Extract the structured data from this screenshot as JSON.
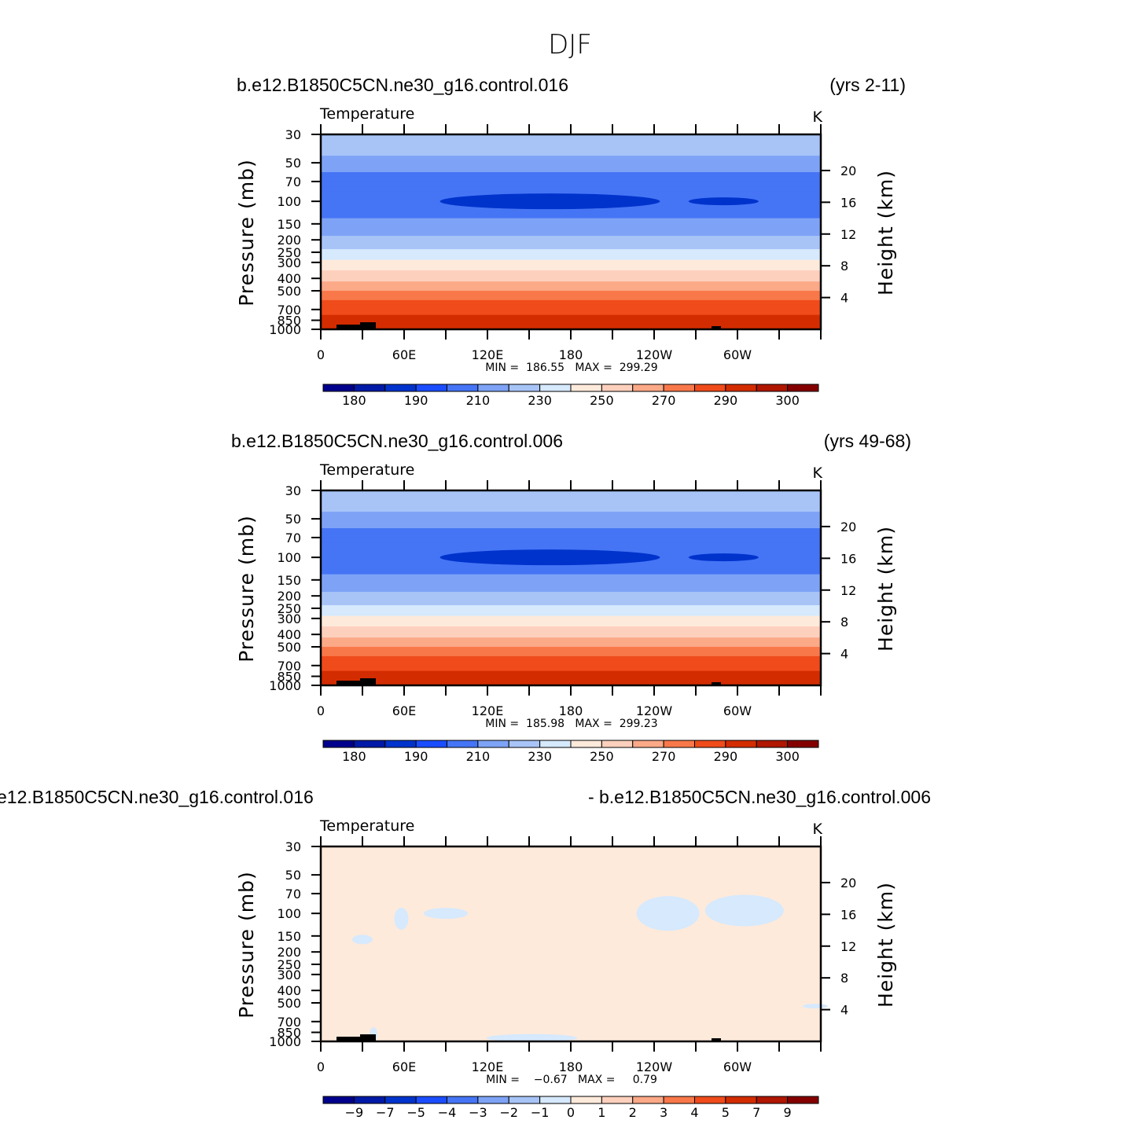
{
  "figure": {
    "title": "DJF"
  },
  "colorbar_palette": [
    "#00008c",
    "#0019a6",
    "#0033cc",
    "#1a4dff",
    "#4575f5",
    "#7ea3f6",
    "#a8c4f7",
    "#d6e9fd",
    "#feeadb",
    "#fdd0bd",
    "#fba987",
    "#f9784a",
    "#f04b1a",
    "#d32c00",
    "#b01600",
    "#840000"
  ],
  "chart_data": [
    {
      "type": "heatmap",
      "panel": "top",
      "case_name": "b.e12.B1850C5CN.ne30_g16.control.016",
      "years_label": "(yrs 2-11)",
      "variable_label": "Temperature",
      "units_label": "K",
      "ylabel": "Pressure (mb)",
      "right_ylabel": "Height (km)",
      "x_ticks": [
        "0",
        "60E",
        "120E",
        "180",
        "120W",
        "60W"
      ],
      "y_ticks": [
        "30",
        "50",
        "70",
        "100",
        "150",
        "200",
        "250",
        "300",
        "400",
        "500",
        "700",
        "850",
        "1000"
      ],
      "right_ticks": [
        "20",
        "16",
        "12",
        "8",
        "4"
      ],
      "stats_label": "MIN =  186.55   MAX =  299.29",
      "colorbar_labels": [
        "180",
        "190",
        "210",
        "230",
        "250",
        "270",
        "290",
        "300"
      ],
      "ylim": [
        1000,
        30
      ],
      "xlim": [
        0,
        360
      ],
      "levels_K": [
        {
          "p": 30,
          "t": 219
        },
        {
          "p": 50,
          "t": 206
        },
        {
          "p": 70,
          "t": 195
        },
        {
          "p": 100,
          "t": 193
        },
        {
          "p": 150,
          "t": 204
        },
        {
          "p": 200,
          "t": 212
        },
        {
          "p": 250,
          "t": 222
        },
        {
          "p": 300,
          "t": 232
        },
        {
          "p": 400,
          "t": 248
        },
        {
          "p": 500,
          "t": 260
        },
        {
          "p": 700,
          "t": 276
        },
        {
          "p": 850,
          "t": 285
        },
        {
          "p": 1000,
          "t": 293
        }
      ]
    },
    {
      "type": "heatmap",
      "panel": "middle",
      "case_name": "b.e12.B1850C5CN.ne30_g16.control.006",
      "years_label": "(yrs 49-68)",
      "variable_label": "Temperature",
      "units_label": "K",
      "ylabel": "Pressure (mb)",
      "right_ylabel": "Height (km)",
      "x_ticks": [
        "0",
        "60E",
        "120E",
        "180",
        "120W",
        "60W"
      ],
      "y_ticks": [
        "30",
        "50",
        "70",
        "100",
        "150",
        "200",
        "250",
        "300",
        "400",
        "500",
        "700",
        "850",
        "1000"
      ],
      "right_ticks": [
        "20",
        "16",
        "12",
        "8",
        "4"
      ],
      "stats_label": "MIN =  185.98   MAX =  299.23",
      "colorbar_labels": [
        "180",
        "190",
        "210",
        "230",
        "250",
        "270",
        "290",
        "300"
      ],
      "ylim": [
        1000,
        30
      ],
      "xlim": [
        0,
        360
      ],
      "levels_K": [
        {
          "p": 30,
          "t": 219
        },
        {
          "p": 50,
          "t": 206
        },
        {
          "p": 70,
          "t": 195
        },
        {
          "p": 100,
          "t": 193
        },
        {
          "p": 150,
          "t": 204
        },
        {
          "p": 200,
          "t": 212
        },
        {
          "p": 250,
          "t": 222
        },
        {
          "p": 300,
          "t": 232
        },
        {
          "p": 400,
          "t": 248
        },
        {
          "p": 500,
          "t": 260
        },
        {
          "p": 700,
          "t": 276
        },
        {
          "p": 850,
          "t": 285
        },
        {
          "p": 1000,
          "t": 293
        }
      ]
    },
    {
      "type": "heatmap",
      "panel": "bottom",
      "case_left": "e12.B1850C5CN.ne30_g16.control.016",
      "case_right": "- b.e12.B1850C5CN.ne30_g16.control.006",
      "variable_label": "Temperature",
      "units_label": "K",
      "ylabel": "Pressure (mb)",
      "right_ylabel": "Height (km)",
      "x_ticks": [
        "0",
        "60E",
        "120E",
        "180",
        "120W",
        "60W"
      ],
      "y_ticks": [
        "30",
        "50",
        "70",
        "100",
        "150",
        "200",
        "250",
        "300",
        "400",
        "500",
        "700",
        "850",
        "1000"
      ],
      "right_ticks": [
        "20",
        "16",
        "12",
        "8",
        "4"
      ],
      "stats_label": "MIN =    −0.67   MAX =     0.79",
      "colorbar_labels": [
        "−9",
        "−7",
        "−5",
        "−4",
        "−3",
        "−2",
        "−1",
        "0",
        "1",
        "2",
        "3",
        "4",
        "5",
        "7",
        "9"
      ],
      "ylim": [
        1000,
        30
      ],
      "xlim": [
        0,
        360
      ],
      "background_range": [
        0,
        1
      ]
    }
  ]
}
